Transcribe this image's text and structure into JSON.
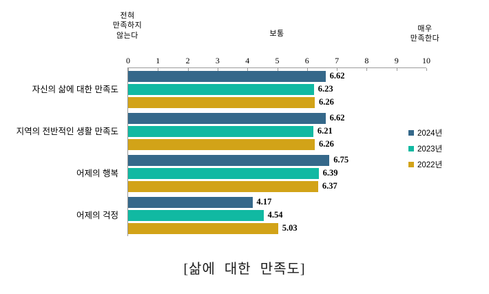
{
  "chart_data": {
    "type": "bar",
    "orientation": "horizontal",
    "title": "[삶에 대한 만족도]",
    "categories": [
      "자신의 삶에 대한 만족도",
      "지역의 전반적인 생활 만족도",
      "어제의 행복",
      "어제의 걱정"
    ],
    "series": [
      {
        "name": "2024년",
        "color": "#35688A",
        "values": [
          6.62,
          6.62,
          6.75,
          4.17
        ]
      },
      {
        "name": "2023년",
        "color": "#11B9A2",
        "values": [
          6.23,
          6.21,
          6.39,
          4.54
        ]
      },
      {
        "name": "2022년",
        "color": "#D2A318",
        "values": [
          6.26,
          6.26,
          6.37,
          5.03
        ]
      }
    ],
    "xlim": [
      0,
      10
    ],
    "x_ticks": [
      0,
      1,
      2,
      3,
      4,
      5,
      6,
      7,
      8,
      9,
      10
    ],
    "axis_annotations": {
      "left": "전혀\n만족하지\n않는다",
      "center": "보통",
      "right": "매우\n만족한다"
    },
    "value_label_decimals": 2,
    "legend_position": "right",
    "axis_color": "#9a9a9a",
    "grid": false
  }
}
